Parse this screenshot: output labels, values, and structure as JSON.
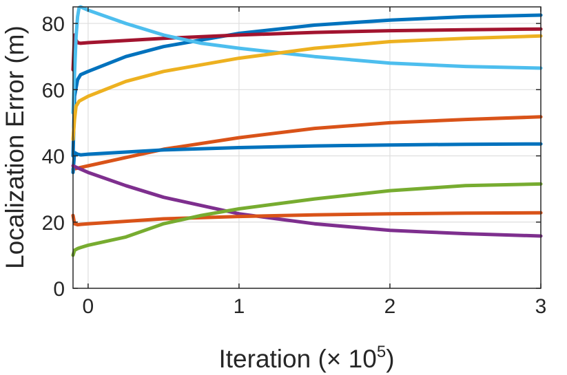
{
  "chart_data": {
    "type": "line",
    "title": "",
    "xlabel": "Iteration (× 10",
    "xlabel_exponent": "5",
    "xlabel_close": ")",
    "ylabel": "Localization Error (m)",
    "xlim": [
      -0.1,
      3
    ],
    "ylim": [
      0,
      85
    ],
    "xticks": [
      0,
      1,
      2,
      3
    ],
    "xtick_labels": [
      "0",
      "1",
      "2",
      "3"
    ],
    "yticks": [
      0,
      20,
      40,
      60,
      80
    ],
    "ytick_labels": [
      "0",
      "20",
      "40",
      "60",
      "80"
    ],
    "grid": true,
    "series": [
      {
        "name": "s1",
        "color": "#0072BD",
        "x": [
          -0.1,
          -0.09,
          -0.07,
          -0.05,
          0.0,
          0.25,
          0.5,
          1.0,
          1.5,
          2.0,
          2.5,
          3.0
        ],
        "y": [
          40,
          58,
          63,
          64.5,
          65.5,
          70,
          73,
          77,
          79.5,
          81,
          82,
          82.5
        ]
      },
      {
        "name": "s2",
        "color": "#A2142F",
        "x": [
          -0.1,
          -0.09,
          -0.08,
          -0.07,
          -0.05,
          0.0,
          0.5,
          1.0,
          1.5,
          2.0,
          2.5,
          3.0
        ],
        "y": [
          66,
          76.5,
          75,
          74.2,
          74,
          74.2,
          75.5,
          76.5,
          77.3,
          77.8,
          78.1,
          78.3
        ]
      },
      {
        "name": "s3",
        "color": "#4DBEEE",
        "x": [
          -0.1,
          -0.09,
          -0.08,
          -0.07,
          -0.06,
          -0.05,
          0.0,
          0.25,
          0.5,
          0.75,
          1.0,
          1.5,
          2.0,
          2.5,
          3.0
        ],
        "y": [
          53,
          65,
          76,
          82,
          84.8,
          85,
          84,
          80,
          76.5,
          74,
          72.5,
          70,
          68,
          67,
          66.5
        ]
      },
      {
        "name": "s4",
        "color": "#EDB120",
        "x": [
          -0.1,
          -0.09,
          -0.08,
          -0.06,
          -0.04,
          0.0,
          0.25,
          0.5,
          1.0,
          1.5,
          2.0,
          2.5,
          3.0
        ],
        "y": [
          45,
          51,
          55,
          56.5,
          57,
          58,
          62.5,
          65.5,
          69.5,
          72.5,
          74.5,
          75.5,
          76.2
        ]
      },
      {
        "name": "s5",
        "color": "#D95319",
        "x": [
          -0.1,
          0.0,
          0.25,
          0.5,
          1.0,
          1.5,
          2.0,
          2.5,
          3.0
        ],
        "y": [
          36,
          37,
          39.5,
          42,
          45.5,
          48.3,
          50,
          51,
          51.8
        ]
      },
      {
        "name": "s6",
        "color": "#0072BD",
        "x": [
          -0.1,
          -0.09,
          -0.07,
          -0.05,
          0.0,
          0.5,
          1.0,
          1.5,
          2.0,
          2.5,
          3.0
        ],
        "y": [
          35,
          41,
          40.5,
          40.3,
          40.5,
          41.8,
          42.5,
          43,
          43.3,
          43.5,
          43.6
        ]
      },
      {
        "name": "s7",
        "color": "#7E2F8E",
        "x": [
          -0.1,
          0.0,
          0.25,
          0.5,
          0.75,
          1.0,
          1.25,
          1.5,
          1.75,
          2.0,
          2.25,
          2.5,
          3.0
        ],
        "y": [
          37,
          35,
          31,
          27.5,
          25,
          22.5,
          21,
          19.5,
          18.5,
          17.5,
          17,
          16.5,
          15.8
        ]
      },
      {
        "name": "s8",
        "color": "#D95319",
        "x": [
          -0.1,
          -0.09,
          -0.07,
          -0.05,
          0.0,
          0.5,
          1.0,
          1.5,
          2.0,
          2.5,
          3.0
        ],
        "y": [
          22,
          19.5,
          19.2,
          19.3,
          19.5,
          21,
          21.7,
          22.2,
          22.5,
          22.7,
          22.8
        ]
      },
      {
        "name": "s9",
        "color": "#77AC30",
        "x": [
          -0.1,
          -0.09,
          -0.07,
          -0.05,
          0.0,
          0.25,
          0.5,
          0.75,
          1.0,
          1.5,
          2.0,
          2.5,
          3.0
        ],
        "y": [
          10,
          11.5,
          12,
          12.3,
          13,
          15.5,
          19.5,
          22,
          24,
          27,
          29.5,
          31,
          31.5
        ]
      }
    ]
  }
}
